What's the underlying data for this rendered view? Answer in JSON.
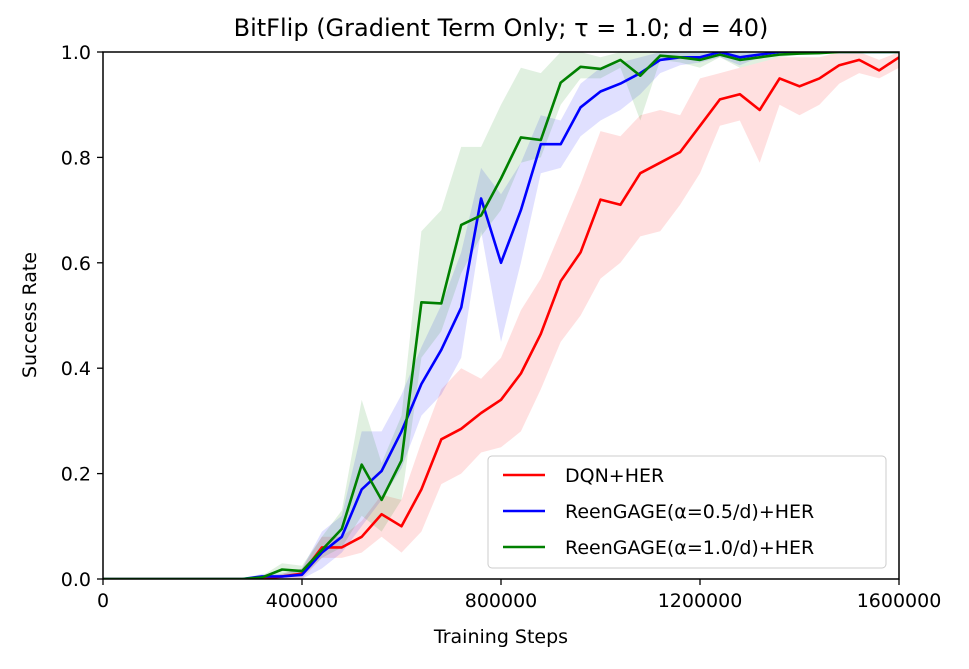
{
  "chart_data": {
    "type": "line",
    "title": "BitFlip (Gradient Term Only; τ = 1.0; d = 40)",
    "xlabel": "Training Steps",
    "ylabel": "Success Rate",
    "xlim": [
      0,
      1600000
    ],
    "ylim": [
      0,
      1.0
    ],
    "x_ticks": [
      0,
      400000,
      800000,
      1200000,
      1600000
    ],
    "x_tick_labels": [
      "0",
      "400000",
      "800000",
      "1200000",
      "1600000"
    ],
    "y_ticks": [
      0,
      0.2,
      0.4,
      0.6,
      0.8,
      1.0
    ],
    "y_tick_labels": [
      "0.0",
      "0.2",
      "0.4",
      "0.6",
      "0.8",
      "1.0"
    ],
    "grid": false,
    "legend_position": "lower-right",
    "x": [
      0,
      40000,
      80000,
      120000,
      160000,
      200000,
      240000,
      280000,
      320000,
      360000,
      400000,
      440000,
      480000,
      520000,
      560000,
      600000,
      640000,
      680000,
      720000,
      760000,
      800000,
      840000,
      880000,
      920000,
      960000,
      1000000,
      1040000,
      1080000,
      1120000,
      1160000,
      1200000,
      1240000,
      1280000,
      1320000,
      1360000,
      1400000,
      1440000,
      1480000,
      1520000,
      1560000,
      1600000
    ],
    "series": [
      {
        "name": "DQN+HER",
        "color": "#ff0000",
        "values": [
          0,
          0,
          0,
          0,
          0,
          0,
          0,
          0,
          0,
          0.005,
          0.01,
          0.06,
          0.06,
          0.08,
          0.123,
          0.1,
          0.17,
          0.265,
          0.285,
          0.315,
          0.34,
          0.39,
          0.465,
          0.565,
          0.62,
          0.72,
          0.71,
          0.77,
          0.79,
          0.81,
          0.86,
          0.91,
          0.92,
          0.89,
          0.95,
          0.935,
          0.95,
          0.975,
          0.985,
          0.965,
          0.99
        ],
        "lower": [
          0,
          0,
          0,
          0,
          0,
          0,
          0,
          0,
          0,
          0,
          0,
          0.04,
          0.04,
          0.05,
          0.08,
          0.05,
          0.09,
          0.18,
          0.2,
          0.24,
          0.25,
          0.28,
          0.36,
          0.45,
          0.5,
          0.57,
          0.6,
          0.65,
          0.66,
          0.71,
          0.77,
          0.86,
          0.87,
          0.79,
          0.9,
          0.88,
          0.9,
          0.94,
          0.96,
          0.95,
          0.97
        ],
        "upper": [
          0,
          0,
          0,
          0,
          0,
          0,
          0,
          0,
          0,
          0.01,
          0.02,
          0.08,
          0.08,
          0.11,
          0.16,
          0.15,
          0.26,
          0.36,
          0.4,
          0.38,
          0.42,
          0.51,
          0.57,
          0.66,
          0.75,
          0.85,
          0.84,
          0.88,
          0.89,
          0.88,
          0.95,
          0.96,
          0.97,
          0.98,
          0.99,
          0.99,
          0.99,
          1.0,
          1.0,
          0.985,
          1.0
        ]
      },
      {
        "name": "ReenGAGE(α=0.5/d)+HER",
        "color": "#0000ff",
        "values": [
          0,
          0,
          0,
          0,
          0,
          0,
          0,
          0,
          0.005,
          0.005,
          0.008,
          0.05,
          0.08,
          0.17,
          0.205,
          0.28,
          0.37,
          0.435,
          0.515,
          0.722,
          0.6,
          0.7,
          0.825,
          0.825,
          0.895,
          0.925,
          0.94,
          0.96,
          0.985,
          0.99,
          0.99,
          1.0,
          0.99,
          0.995,
          1.0,
          1.0,
          1.0,
          1.0,
          1.0,
          1.0,
          1.0
        ],
        "lower": [
          0,
          0,
          0,
          0,
          0,
          0,
          0,
          0,
          0,
          0,
          0,
          0.02,
          0.05,
          0.1,
          0.15,
          0.21,
          0.31,
          0.35,
          0.42,
          0.66,
          0.45,
          0.6,
          0.77,
          0.78,
          0.84,
          0.87,
          0.89,
          0.92,
          0.96,
          0.975,
          0.98,
          0.99,
          0.975,
          0.99,
          1.0,
          1.0,
          1.0,
          1.0,
          1.0,
          1.0,
          1.0
        ],
        "upper": [
          0,
          0,
          0,
          0,
          0,
          0,
          0,
          0,
          0.01,
          0.01,
          0.02,
          0.09,
          0.12,
          0.28,
          0.28,
          0.35,
          0.44,
          0.52,
          0.62,
          0.78,
          0.73,
          0.79,
          0.88,
          0.87,
          0.94,
          0.97,
          0.98,
          0.99,
          1.0,
          1.0,
          1.0,
          1.0,
          1.0,
          1.0,
          1.0,
          1.0,
          1.0,
          1.0,
          1.0,
          1.0,
          1.0
        ]
      },
      {
        "name": "ReenGAGE(α=1.0/d)+HER",
        "color": "#008000",
        "values": [
          0,
          0,
          0,
          0,
          0,
          0,
          0,
          0,
          0.003,
          0.018,
          0.015,
          0.055,
          0.095,
          0.217,
          0.15,
          0.225,
          0.525,
          0.523,
          0.672,
          0.69,
          0.76,
          0.838,
          0.833,
          0.942,
          0.972,
          0.968,
          0.985,
          0.955,
          0.993,
          0.99,
          0.985,
          0.995,
          0.985,
          0.99,
          0.995,
          0.997,
          0.998,
          1.0,
          1.0,
          1.0,
          1.0
        ],
        "lower": [
          0,
          0,
          0,
          0,
          0,
          0,
          0,
          0,
          0,
          0.005,
          0.005,
          0.04,
          0.06,
          0.12,
          0.09,
          0.15,
          0.42,
          0.47,
          0.58,
          0.65,
          0.7,
          0.79,
          0.8,
          0.9,
          0.95,
          0.95,
          0.97,
          0.87,
          0.985,
          0.98,
          0.97,
          0.99,
          0.97,
          0.98,
          0.99,
          0.995,
          0.995,
          1.0,
          1.0,
          1.0,
          1.0
        ],
        "upper": [
          0,
          0,
          0,
          0,
          0,
          0,
          0,
          0,
          0.006,
          0.03,
          0.025,
          0.08,
          0.13,
          0.34,
          0.22,
          0.31,
          0.66,
          0.7,
          0.82,
          0.82,
          0.9,
          0.97,
          0.96,
          1.0,
          1.0,
          0.99,
          1.0,
          1.0,
          1.0,
          1.0,
          1.0,
          1.0,
          1.0,
          1.0,
          1.0,
          1.0,
          1.0,
          1.0,
          1.0,
          1.0,
          1.0
        ]
      }
    ]
  }
}
